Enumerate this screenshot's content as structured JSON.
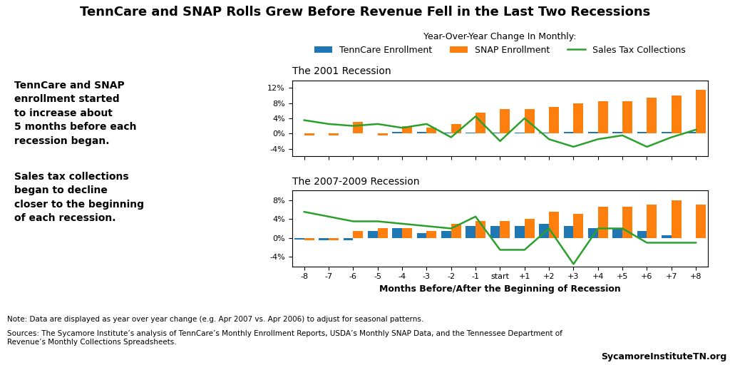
{
  "title": "TennCare and SNAP Rolls Grew Before Revenue Fell in the Last Two Recessions",
  "annotations": [
    "Year-Over-Year Change In Monthly:",
    "TennCare and SNAP\nenrollment started\nto increase about\n5 months before each\nrecession began.",
    "Sales tax collections\nbegan to decline\ncloser to the beginning\nof each recession.",
    "Note: Data are displayed as year over year change (e.g. Apr 2007 vs. Apr 2006) to adjust for seasonal patterns.",
    "Sources: The Sycamore Institute’s analysis of TennCare’s Monthly Enrollment Reports, USDA’s Monthly SNAP Data, and the Tennessee Department of\nRevenue’s Monthly Collections Spreadsheets.",
    "SycamoreInstituteTN.org"
  ],
  "chart_data": [
    {
      "type": "bar",
      "title": "The 2001 Recession",
      "categories": [
        "-8",
        "-7",
        "-6",
        "-5",
        "-4",
        "-3",
        "-2",
        "-1",
        "start",
        "+1",
        "+2",
        "+3",
        "+4",
        "+5",
        "+6",
        "+7",
        "+8"
      ],
      "series": [
        {
          "name": "TennCare Enrollment",
          "type": "bar",
          "values": [
            0.0,
            0.0,
            0.0,
            0.0,
            0.5,
            0.5,
            0.3,
            0.3,
            0.3,
            0.3,
            0.3,
            0.5,
            0.5,
            0.5,
            0.5,
            0.5,
            0.5
          ]
        },
        {
          "name": "SNAP Enrollment",
          "type": "bar",
          "values": [
            -0.5,
            -0.5,
            3.0,
            -0.5,
            2.0,
            1.5,
            2.5,
            5.5,
            6.5,
            6.5,
            7.0,
            8.0,
            8.5,
            8.5,
            9.5,
            10.0,
            11.5
          ]
        },
        {
          "name": "Sales Tax Collections",
          "type": "line",
          "values": [
            3.5,
            2.5,
            2.0,
            2.5,
            1.5,
            2.5,
            -1.0,
            4.5,
            -2.0,
            4.0,
            -1.5,
            -3.5,
            -1.5,
            -0.5,
            -3.5,
            -1.0,
            1.0
          ]
        }
      ],
      "ylim": [
        -6,
        14
      ],
      "yticks": [
        {
          "value": -4,
          "label": "-4%"
        },
        {
          "value": 0,
          "label": "0%"
        },
        {
          "value": 4,
          "label": "4%"
        },
        {
          "value": 8,
          "label": "8%"
        },
        {
          "value": 12,
          "label": "12%"
        }
      ],
      "legend": "upper center",
      "tick_labels": "y"
    },
    {
      "type": "bar",
      "title": "The 2007-2009 Recession",
      "xlabel": "Months Before/After the Beginning of Recession",
      "categories": [
        "-8",
        "-7",
        "-6",
        "-5",
        "-4",
        "-3",
        "-2",
        "-1",
        "start",
        "+1",
        "+2",
        "+3",
        "+4",
        "+5",
        "+6",
        "+7",
        "+8"
      ],
      "series": [
        {
          "name": "TennCare Enrollment",
          "type": "bar",
          "values": [
            -0.3,
            -0.5,
            -0.5,
            1.5,
            2.0,
            1.0,
            1.5,
            2.5,
            2.5,
            2.5,
            3.0,
            2.5,
            2.0,
            2.0,
            1.5,
            0.5,
            0.0
          ]
        },
        {
          "name": "SNAP Enrollment",
          "type": "bar",
          "values": [
            -0.5,
            -0.5,
            1.5,
            2.0,
            2.0,
            1.5,
            3.0,
            3.5,
            3.5,
            4.0,
            5.5,
            5.0,
            6.5,
            6.5,
            7.0,
            8.0,
            7.0
          ]
        },
        {
          "name": "Sales Tax Collections",
          "type": "line",
          "values": [
            5.5,
            4.5,
            3.5,
            3.5,
            3.0,
            2.5,
            2.0,
            4.5,
            -2.5,
            -2.5,
            2.0,
            -5.5,
            2.0,
            2.0,
            -1.0,
            -1.0,
            -1.0
          ]
        }
      ],
      "ylim": [
        -6,
        10
      ],
      "yticks": [
        {
          "value": -4,
          "label": "-4%"
        },
        {
          "value": 0,
          "label": "0%"
        },
        {
          "value": 4,
          "label": "4%"
        },
        {
          "value": 8,
          "label": "8%"
        }
      ]
    }
  ]
}
